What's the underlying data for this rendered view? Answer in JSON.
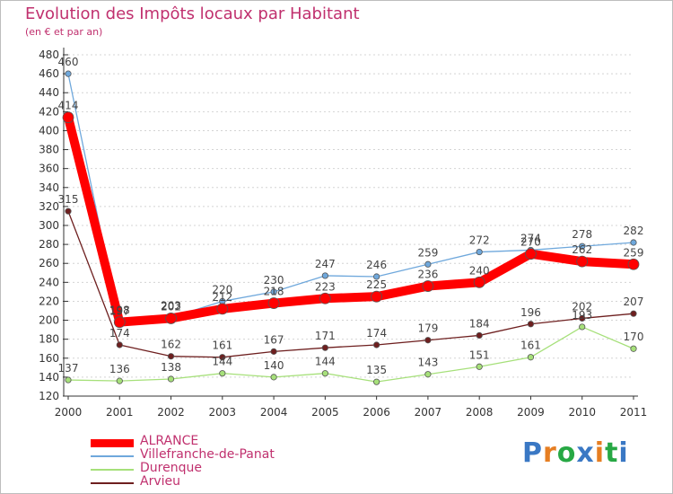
{
  "header": {
    "title": "Evolution des Impôts locaux par Habitant",
    "subtitle": "(en € et par an)"
  },
  "logo": {
    "letters": [
      "P",
      "r",
      "o",
      "x",
      "i",
      "t",
      "i"
    ],
    "colors": [
      "#3a78c4",
      "#e67e22",
      "#27a844",
      "#3a78c4",
      "#e67e22",
      "#27a844",
      "#3a78c4"
    ]
  },
  "chart_data": {
    "type": "line",
    "title": "Evolution des Impôts locaux par Habitant",
    "subtitle": "(en € et par an)",
    "x": [
      "2000",
      "2001",
      "2002",
      "2003",
      "2004",
      "2005",
      "2006",
      "2007",
      "2008",
      "2009",
      "2010",
      "2011"
    ],
    "ylim": [
      120,
      480
    ],
    "yticks": [
      120,
      140,
      160,
      180,
      200,
      220,
      240,
      260,
      280,
      300,
      320,
      340,
      360,
      380,
      400,
      420,
      440,
      460,
      480
    ],
    "grid": "horizontal dotted",
    "legend_position": "bottom-left",
    "series": [
      {
        "name": "ALRANCE",
        "color": "#ff0000",
        "label_color": "#444444",
        "values": [
          414,
          198,
          202,
          212,
          218,
          223,
          225,
          236,
          240,
          270,
          262,
          259
        ],
        "labels": [
          "414",
          "198",
          "202",
          "212",
          "218",
          "223",
          "225",
          "236",
          "240",
          "270",
          "262",
          "259"
        ]
      },
      {
        "name": "Villefranche-de-Panat",
        "color": "#6fa8dc",
        "label_color": "#444444",
        "values": [
          460,
          197,
          203,
          220,
          230,
          247,
          246,
          259,
          272,
          274,
          278,
          282
        ],
        "labels": [
          "460",
          "197",
          "203",
          "220",
          "230",
          "247",
          "246",
          "259",
          "272",
          "274",
          "278",
          "282"
        ]
      },
      {
        "name": "Durenque",
        "color": "#a6e07a",
        "label_color": "#444444",
        "values": [
          137,
          136,
          138,
          144,
          140,
          144,
          135,
          143,
          151,
          161,
          193,
          170
        ],
        "labels": [
          "137",
          "136",
          "138",
          "144",
          "140",
          "144",
          "135",
          "143",
          "151",
          "161",
          "193",
          "170"
        ]
      },
      {
        "name": "Arvieu",
        "color": "#6e1f1f",
        "label_color": "#444444",
        "values": [
          315,
          174,
          162,
          161,
          167,
          171,
          174,
          179,
          184,
          196,
          202,
          207
        ],
        "labels": [
          "315",
          "174",
          "162",
          "161",
          "167",
          "171",
          "174",
          "179",
          "184",
          "196",
          "202",
          "207"
        ]
      }
    ]
  }
}
